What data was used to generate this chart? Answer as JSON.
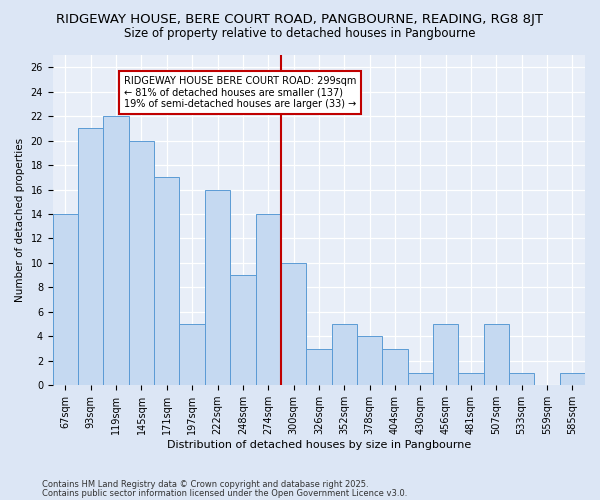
{
  "title1": "RIDGEWAY HOUSE, BERE COURT ROAD, PANGBOURNE, READING, RG8 8JT",
  "title2": "Size of property relative to detached houses in Pangbourne",
  "xlabel": "Distribution of detached houses by size in Pangbourne",
  "ylabel": "Number of detached properties",
  "categories": [
    "67sqm",
    "93sqm",
    "119sqm",
    "145sqm",
    "171sqm",
    "197sqm",
    "222sqm",
    "248sqm",
    "274sqm",
    "300sqm",
    "326sqm",
    "352sqm",
    "378sqm",
    "404sqm",
    "430sqm",
    "456sqm",
    "481sqm",
    "507sqm",
    "533sqm",
    "559sqm",
    "585sqm"
  ],
  "values": [
    14,
    21,
    22,
    20,
    17,
    5,
    16,
    9,
    14,
    10,
    3,
    5,
    4,
    3,
    1,
    5,
    1,
    5,
    1,
    0,
    1
  ],
  "bar_color": "#c5d9f1",
  "bar_edge_color": "#5b9bd5",
  "bar_linewidth": 0.7,
  "vline_color": "#c00000",
  "annotation_text": "RIDGEWAY HOUSE BERE COURT ROAD: 299sqm\n← 81% of detached houses are smaller (137)\n19% of semi-detached houses are larger (33) →",
  "annotation_box_color": "#ffffff",
  "annotation_border_color": "#c00000",
  "ylim": [
    0,
    27
  ],
  "yticks": [
    0,
    2,
    4,
    6,
    8,
    10,
    12,
    14,
    16,
    18,
    20,
    22,
    24,
    26
  ],
  "plot_bg_color": "#dce6f5",
  "fig_bg_color": "#dce6f5",
  "footer1": "Contains HM Land Registry data © Crown copyright and database right 2025.",
  "footer2": "Contains public sector information licensed under the Open Government Licence v3.0.",
  "title1_fontsize": 9.5,
  "title2_fontsize": 8.5,
  "xlabel_fontsize": 8.0,
  "ylabel_fontsize": 7.5,
  "tick_fontsize": 7.0,
  "annotation_fontsize": 7.0,
  "footer_fontsize": 6.0
}
